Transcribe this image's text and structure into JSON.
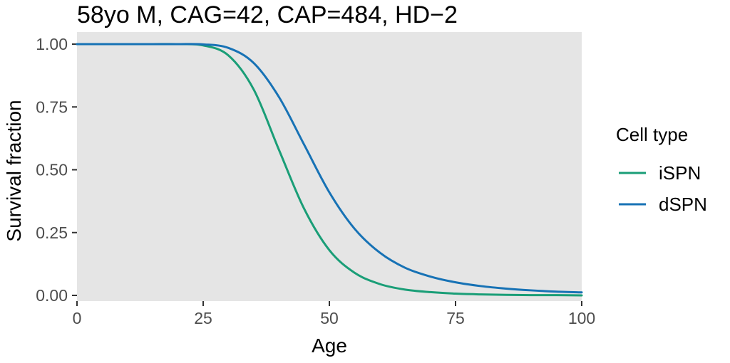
{
  "chart_data": {
    "type": "line",
    "title": "58yo M, CAG=42, CAP=484, HD−2",
    "xlabel": "Age",
    "ylabel": "Survival fraction",
    "xlim": [
      0,
      100
    ],
    "ylim": [
      0,
      1
    ],
    "x_ticks": [
      0,
      25,
      50,
      75,
      100
    ],
    "x_tick_labels": [
      "0",
      "25",
      "50",
      "75",
      "100"
    ],
    "y_ticks": [
      0,
      0.25,
      0.5,
      0.75,
      1
    ],
    "y_tick_labels": [
      "0.00",
      "0.25",
      "0.50",
      "0.75",
      "1.00"
    ],
    "grid": false,
    "panel_background": "#e5e5e5",
    "legend": {
      "title": "Cell type",
      "position": "right"
    },
    "x": [
      0,
      5,
      10,
      15,
      20,
      25,
      30,
      35,
      40,
      45,
      50,
      55,
      60,
      65,
      70,
      75,
      80,
      85,
      90,
      95,
      100
    ],
    "series": [
      {
        "name": "iSPN",
        "color": "#1a9e77",
        "values": [
          1.0,
          1.0,
          1.0,
          1.0,
          1.0,
          0.995,
          0.955,
          0.82,
          0.58,
          0.345,
          0.18,
          0.09,
          0.045,
          0.023,
          0.013,
          0.007,
          0.004,
          0.002,
          0.001,
          0.001,
          0.0
        ]
      },
      {
        "name": "dSPN",
        "color": "#1772b5",
        "values": [
          1.0,
          1.0,
          1.0,
          1.0,
          1.0,
          0.999,
          0.985,
          0.925,
          0.79,
          0.6,
          0.41,
          0.265,
          0.17,
          0.11,
          0.075,
          0.052,
          0.037,
          0.027,
          0.02,
          0.015,
          0.012
        ]
      }
    ]
  }
}
